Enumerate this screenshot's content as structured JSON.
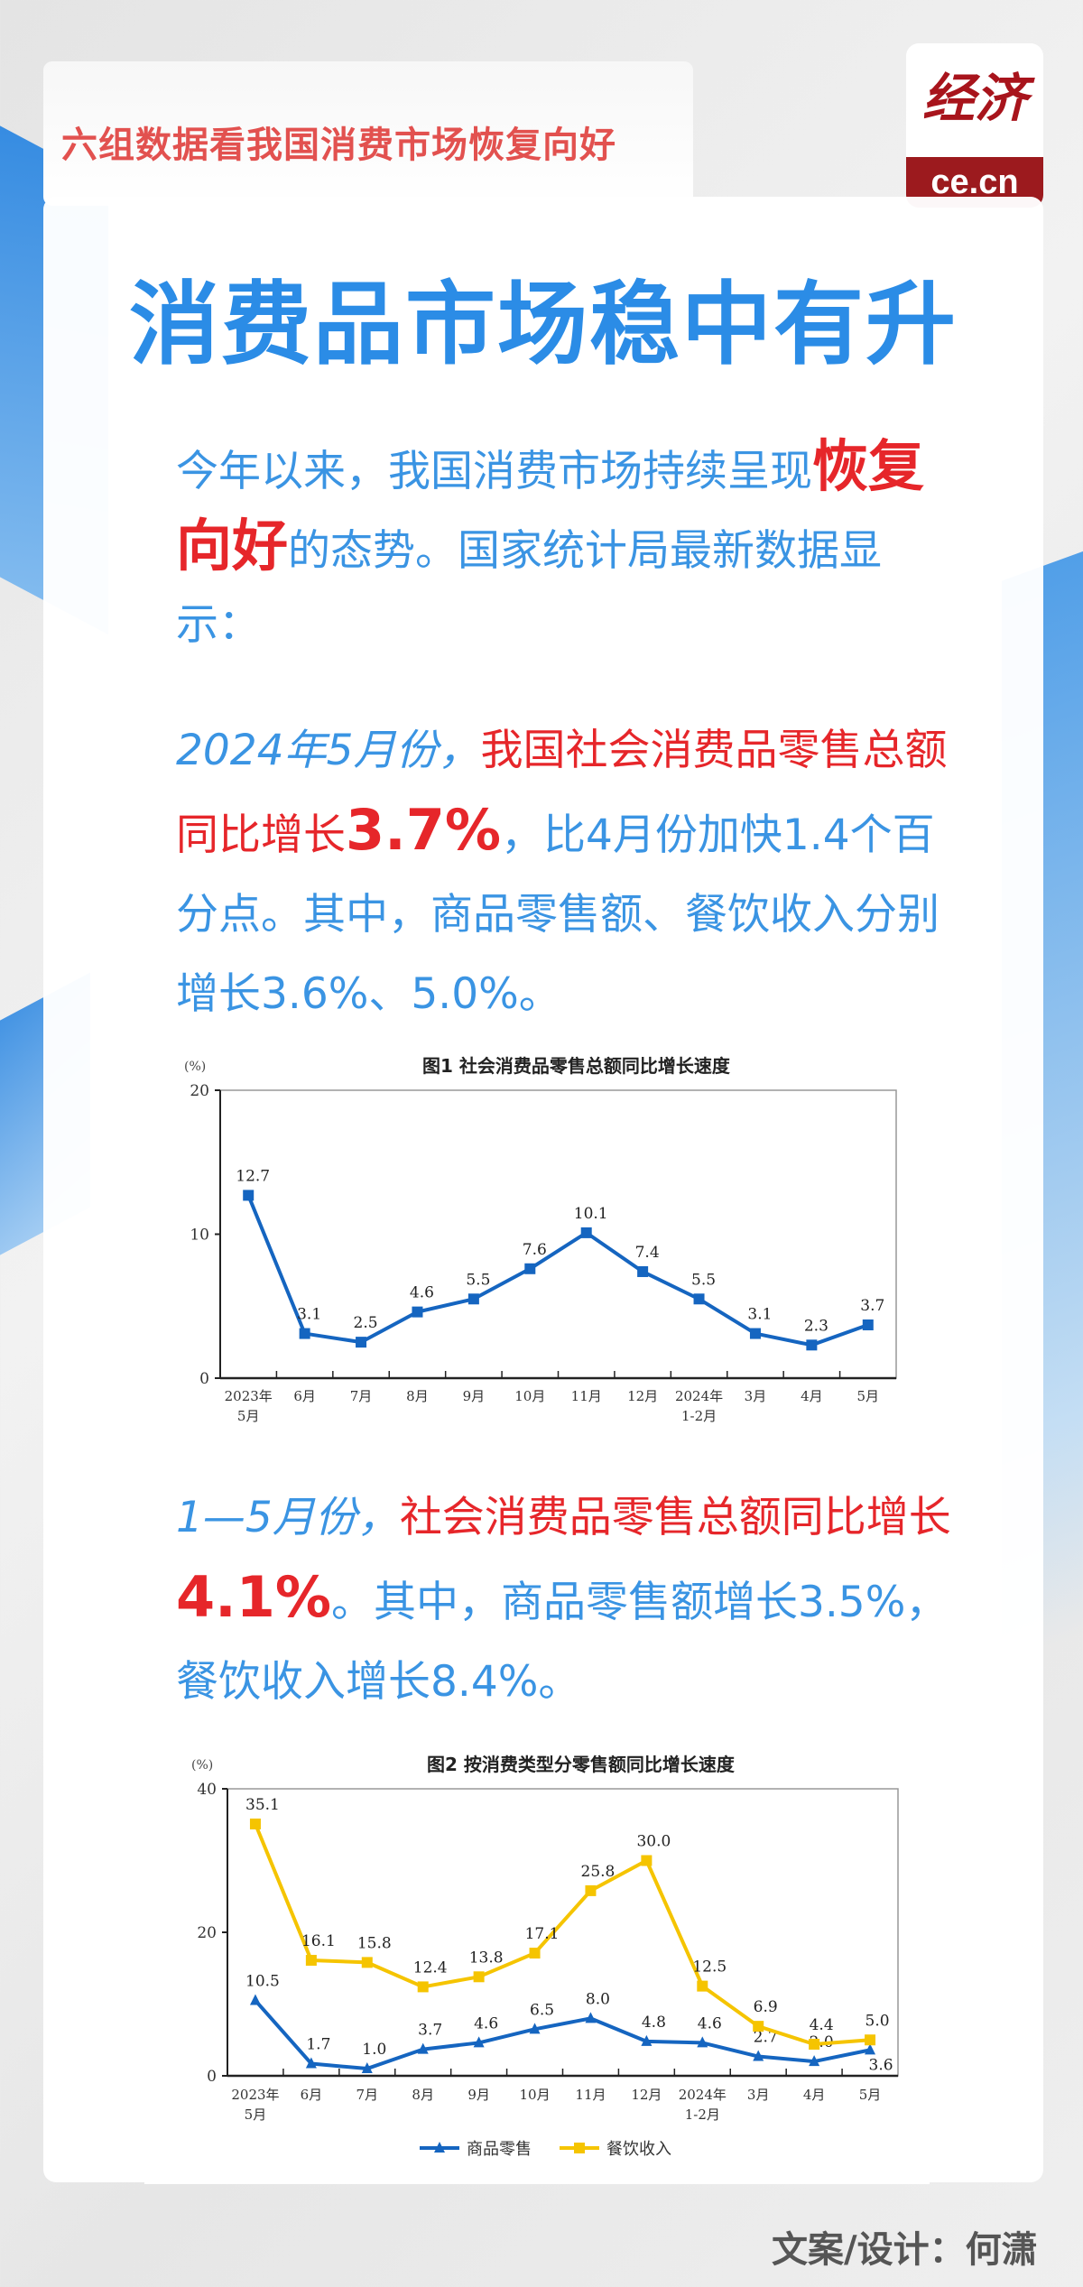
{
  "header": {
    "subtitle": "六组数据看我国消费市场恢复向好"
  },
  "logo": {
    "mark": "经济",
    "domain": "ce.cn"
  },
  "main": {
    "title": "消费品市场稳中有升",
    "para1": {
      "a": "今年以来，我国消费市场持续呈现",
      "b": "恢复向好",
      "c": "的态势。国家统计局最新数据显示："
    },
    "para2": {
      "a": "2024年5月份，",
      "b": "我国社会消费品零售总额同比增长",
      "c": "3.7%",
      "d": "，比4月份加快1.4个百分点。其中，商品零售额、餐饮收入分别增长3.6%、5.0%。"
    },
    "para3": {
      "a": "1—5月份，",
      "b": "社会消费品零售总额同比增长",
      "c": "4.1%",
      "d": "。其中，商品零售额增长3.5%，餐饮收入增长8.4%。"
    }
  },
  "credit": "文案/设计：何潇",
  "colors": {
    "blue": "#2b8ce6",
    "red": "#e6262a",
    "line_blue": "#1565c0",
    "line_yellow": "#f5c400"
  },
  "chart_data": [
    {
      "type": "line",
      "title": "图1  社会消费品零售总额同比增长速度",
      "ylabel": "(%)",
      "ylim": [
        0,
        20
      ],
      "yticks": [
        "0",
        "10",
        "20"
      ],
      "categories": [
        "2023年\n5月",
        "6月",
        "7月",
        "8月",
        "9月",
        "10月",
        "11月",
        "12月",
        "2024年\n1-2月",
        "3月",
        "4月",
        "5月"
      ],
      "series": [
        {
          "values": [
            12.7,
            3.1,
            2.5,
            4.6,
            5.5,
            7.6,
            10.1,
            7.4,
            5.5,
            3.1,
            2.3,
            3.7
          ],
          "labels": [
            "12.7",
            "3.1",
            "2.5",
            "4.6",
            "5.5",
            "7.6",
            "10.1",
            "7.4",
            "5.5",
            "3.1",
            "2.3",
            "3.7"
          ],
          "color": "#1565c0",
          "marker": "square"
        }
      ],
      "grid": false
    },
    {
      "type": "line",
      "title": "图2  按消费类型分零售额同比增长速度",
      "ylabel": "(%)",
      "ylim": [
        0,
        40
      ],
      "yticks": [
        "0",
        "20",
        "40"
      ],
      "categories": [
        "2023年\n5月",
        "6月",
        "7月",
        "8月",
        "9月",
        "10月",
        "11月",
        "12月",
        "2024年\n1-2月",
        "3月",
        "4月",
        "5月"
      ],
      "series": [
        {
          "name": "商品零售",
          "values": [
            10.5,
            1.7,
            1.0,
            3.7,
            4.6,
            6.5,
            8.0,
            4.8,
            4.6,
            2.7,
            2.0,
            3.6
          ],
          "labels": [
            "10.5",
            "1.7",
            "1.0",
            "3.7",
            "4.6",
            "6.5",
            "8.0",
            "4.8",
            "4.6",
            "2.7",
            "2.0",
            "3.6"
          ],
          "color": "#1565c0",
          "marker": "triangle"
        },
        {
          "name": "餐饮收入",
          "values": [
            35.1,
            16.1,
            15.8,
            12.4,
            13.8,
            17.1,
            25.8,
            30.0,
            12.5,
            6.9,
            4.4,
            5.0
          ],
          "labels": [
            "35.1",
            "16.1",
            "15.8",
            "12.4",
            "13.8",
            "17.1",
            "25.8",
            "30.0",
            "12.5",
            "6.9",
            "4.4",
            "5.0"
          ],
          "color": "#f5c400",
          "marker": "square"
        }
      ],
      "legend": "bottom",
      "grid": false
    }
  ]
}
